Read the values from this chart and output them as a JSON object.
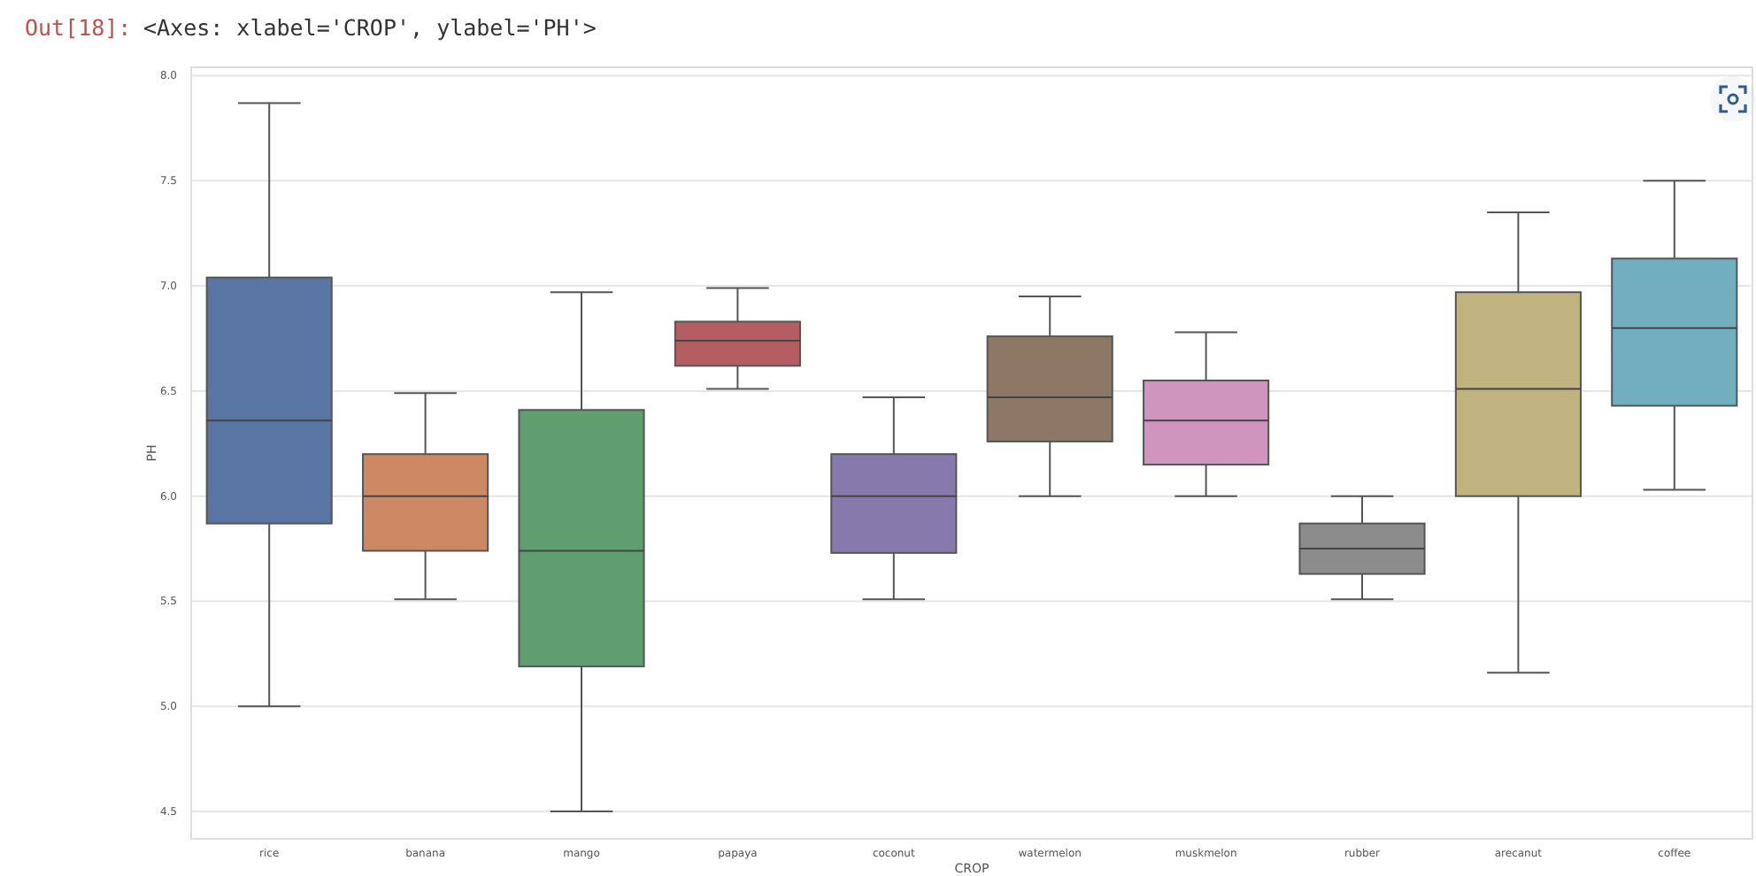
{
  "chart_data": {
    "type": "box",
    "xlabel": "CROP",
    "ylabel": "PH",
    "annotations": [
      "Out[18]:",
      "<Axes: xlabel='CROP', ylabel='PH'>"
    ],
    "categories": [
      "rice",
      "banana",
      "mango",
      "papaya",
      "coconut",
      "watermelon",
      "muskmelon",
      "rubber",
      "arecanut",
      "coffee"
    ],
    "colors": [
      "#5975a4",
      "#cc8963",
      "#5f9e6e",
      "#b55d60",
      "#857aab",
      "#8d7866",
      "#d095bf",
      "#8c8c8c",
      "#c1b37f",
      "#71aec0"
    ],
    "boxes": [
      {
        "low": 5.0,
        "q1": 5.87,
        "median": 6.36,
        "q3": 7.04,
        "high": 7.87
      },
      {
        "low": 5.51,
        "q1": 5.74,
        "median": 6.0,
        "q3": 6.2,
        "high": 6.49
      },
      {
        "low": 4.5,
        "q1": 5.19,
        "median": 5.74,
        "q3": 6.41,
        "high": 6.97
      },
      {
        "low": 6.51,
        "q1": 6.62,
        "median": 6.74,
        "q3": 6.83,
        "high": 6.99
      },
      {
        "low": 5.51,
        "q1": 5.73,
        "median": 6.0,
        "q3": 6.2,
        "high": 6.47
      },
      {
        "low": 6.0,
        "q1": 6.26,
        "median": 6.47,
        "q3": 6.76,
        "high": 6.95
      },
      {
        "low": 6.0,
        "q1": 6.15,
        "median": 6.36,
        "q3": 6.55,
        "high": 6.78
      },
      {
        "low": 5.51,
        "q1": 5.63,
        "median": 5.75,
        "q3": 5.87,
        "high": 6.0
      },
      {
        "low": 5.16,
        "q1": 6.0,
        "median": 6.51,
        "q3": 6.97,
        "high": 7.35
      },
      {
        "low": 6.03,
        "q1": 6.43,
        "median": 6.8,
        "q3": 7.13,
        "high": 7.5
      }
    ],
    "ylim": [
      4.37,
      8.04
    ],
    "yticks": [
      {
        "value": 4.5,
        "label": "4.5"
      },
      {
        "value": 5,
        "label": "5.0"
      },
      {
        "value": 5.5,
        "label": "5.5"
      },
      {
        "value": 6,
        "label": "6.0"
      },
      {
        "value": 6.5,
        "label": "6.5"
      },
      {
        "value": 7,
        "label": "7.0"
      },
      {
        "value": 7.5,
        "label": "7.5"
      },
      {
        "value": 8,
        "label": "8.0"
      }
    ],
    "grid": "y"
  }
}
